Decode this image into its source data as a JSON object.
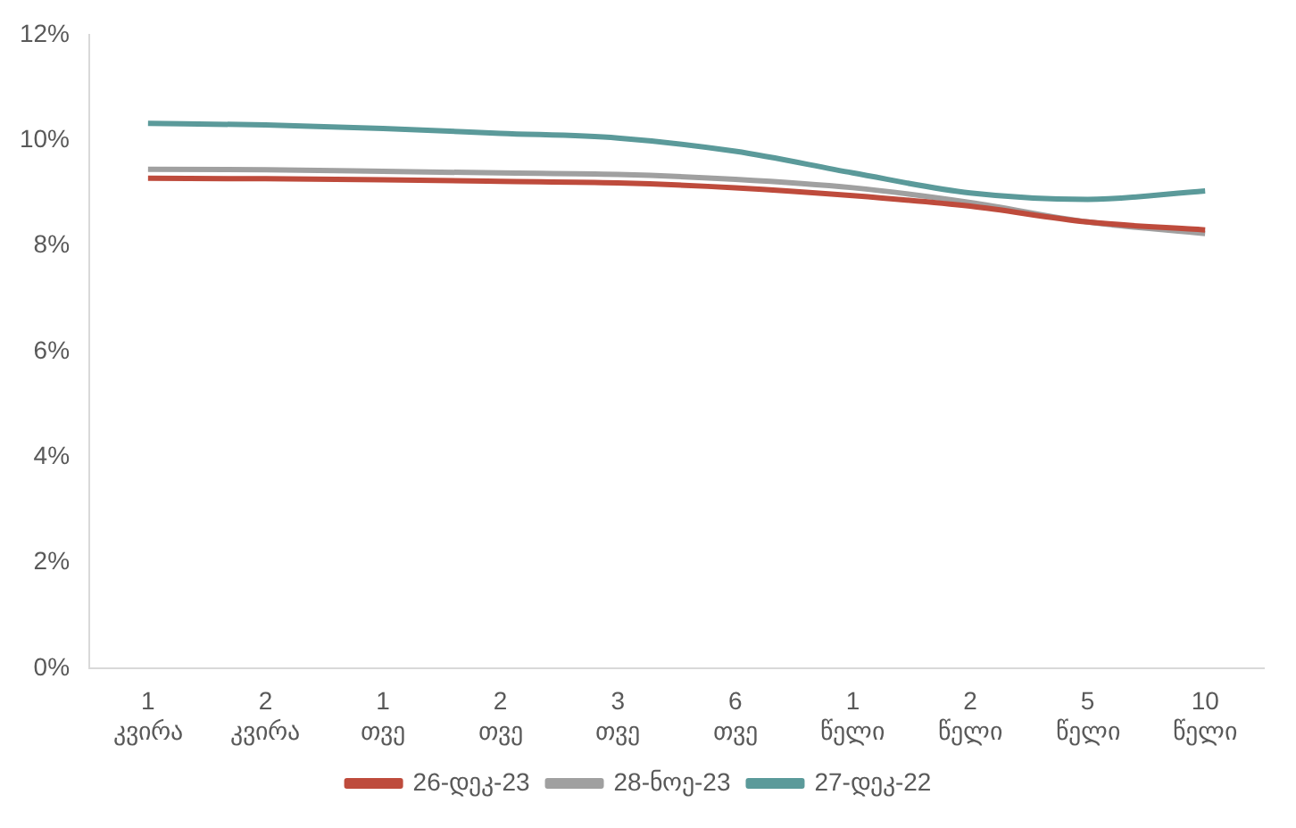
{
  "chart_data": {
    "type": "line",
    "categories": [
      "1 კვირა",
      "2 კვირა",
      "1 თვე",
      "2 თვე",
      "3 თვე",
      "6 თვე",
      "1 წელი",
      "2 წელი",
      "5 წელი",
      "10 წელი"
    ],
    "series": [
      {
        "name": "26-დეკ-23",
        "color": "#be4b3c",
        "values": [
          9.28,
          9.27,
          9.25,
          9.22,
          9.19,
          9.1,
          8.95,
          8.75,
          8.45,
          8.3
        ]
      },
      {
        "name": "28-ნოე-23",
        "color": "#a0a0a0",
        "values": [
          9.45,
          9.44,
          9.41,
          9.38,
          9.35,
          9.26,
          9.1,
          8.82,
          8.45,
          8.23
        ]
      },
      {
        "name": "27-დეკ-22",
        "color": "#5b9a9a",
        "values": [
          10.32,
          10.29,
          10.22,
          10.13,
          10.04,
          9.79,
          9.38,
          9.0,
          8.88,
          9.04
        ]
      }
    ],
    "ylim": [
      0,
      12
    ],
    "yticks": [
      {
        "value": 0,
        "label": "0%"
      },
      {
        "value": 2,
        "label": "2%"
      },
      {
        "value": 4,
        "label": "4%"
      },
      {
        "value": 6,
        "label": "6%"
      },
      {
        "value": 8,
        "label": "8%"
      },
      {
        "value": 10,
        "label": "10%"
      },
      {
        "value": 12,
        "label": "12%"
      }
    ],
    "grid": false,
    "legend": "bottom",
    "marker": "none",
    "line_style": "solid"
  }
}
